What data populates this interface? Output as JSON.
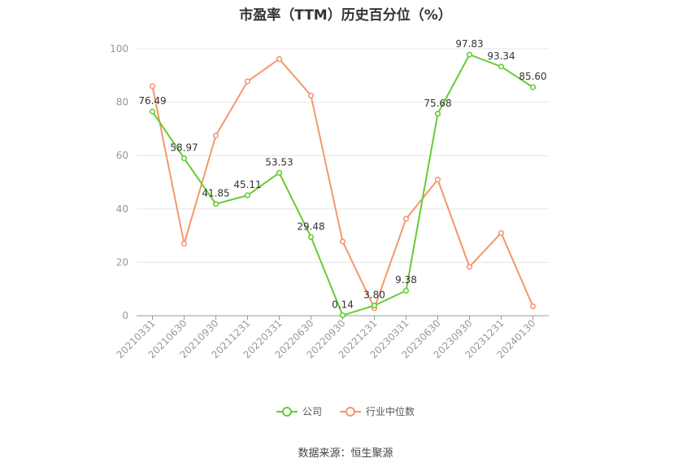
{
  "chart_data": {
    "type": "line",
    "title": "市盈率（TTM）历史百分位（%）",
    "categories": [
      "20210331",
      "20210630",
      "20210930",
      "20211231",
      "20220331",
      "20220630",
      "20220930",
      "20221231",
      "20230331",
      "20230630",
      "20230930",
      "20231231",
      "20240130"
    ],
    "ylim": [
      0,
      100
    ],
    "yticks": [
      0,
      20,
      40,
      60,
      80,
      100
    ],
    "grid": true,
    "legend_position": "bottom",
    "series": [
      {
        "name": "公司",
        "color": "#66cc33",
        "values": [
          76.49,
          58.97,
          41.85,
          45.11,
          53.53,
          29.48,
          0.14,
          3.8,
          9.38,
          75.68,
          97.83,
          93.34,
          85.6
        ],
        "labels": [
          "76.49",
          "58.97",
          "41.85",
          "45.11",
          "53.53",
          "29.48",
          "0.14",
          "3.80",
          "9.38",
          "75.68",
          "97.83",
          "93.34",
          "85.60"
        ]
      },
      {
        "name": "行业中位数",
        "color": "#f4976c",
        "values": [
          86,
          27,
          67.5,
          87.8,
          96.2,
          82.5,
          27.8,
          2.8,
          36.3,
          51,
          18.3,
          31,
          3.5
        ]
      }
    ]
  },
  "source": "数据来源：恒生聚源"
}
